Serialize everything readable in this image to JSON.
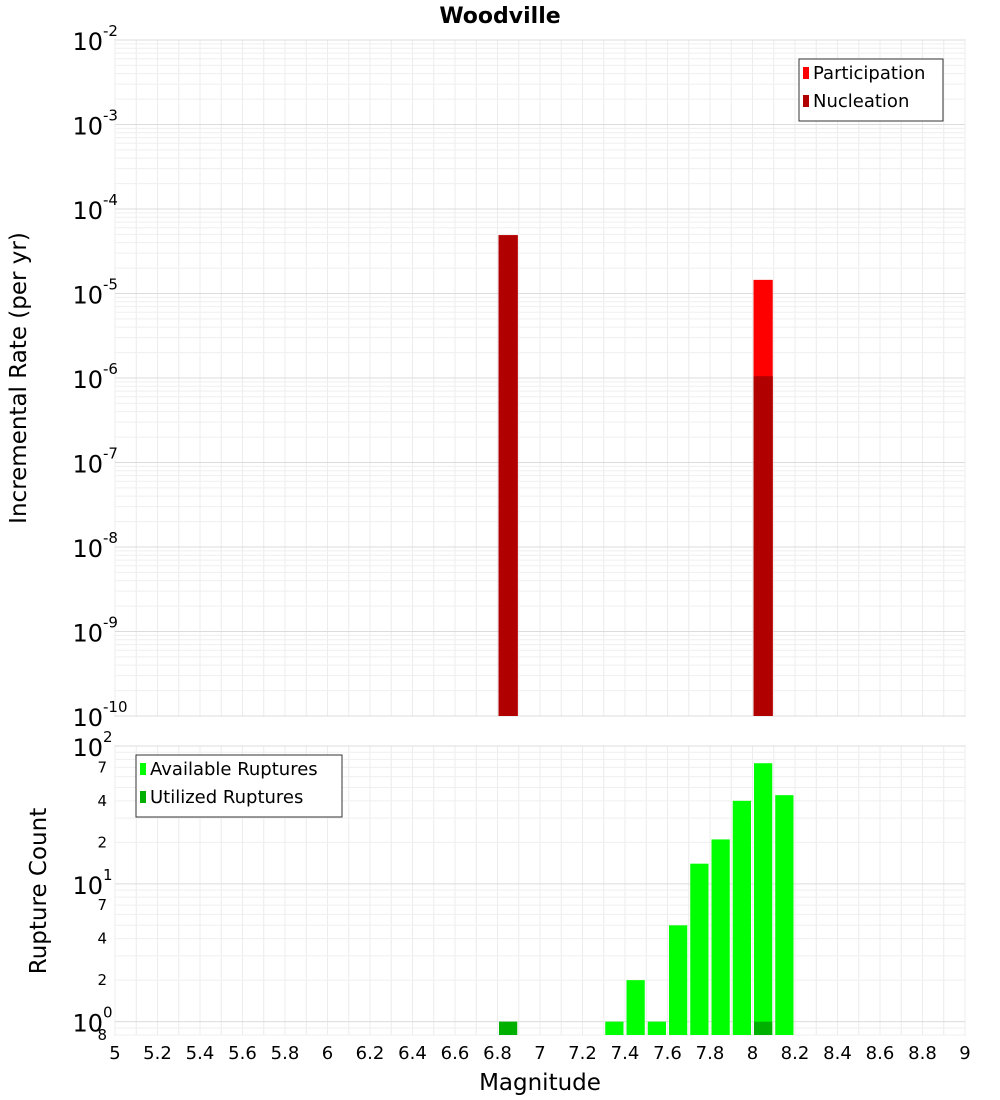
{
  "title": "Woodville",
  "chart_data": [
    {
      "type": "bar",
      "ylabel": "Incremental Rate (per yr)",
      "yscale": "log",
      "ylim": [
        1e-10,
        0.01
      ],
      "xlim": [
        5,
        9
      ],
      "bin_width": 0.1,
      "y_tick_base": "10",
      "y_ticks": [
        {
          "value": 0.01,
          "exp": "-2"
        },
        {
          "value": 0.001,
          "exp": "-3"
        },
        {
          "value": 0.0001,
          "exp": "-4"
        },
        {
          "value": 1e-05,
          "exp": "-5"
        },
        {
          "value": 1e-06,
          "exp": "-6"
        },
        {
          "value": 1e-07,
          "exp": "-7"
        },
        {
          "value": 1e-08,
          "exp": "-8"
        },
        {
          "value": 1e-09,
          "exp": "-9"
        },
        {
          "value": 1e-10,
          "exp": "-10"
        }
      ],
      "legend": {
        "position": "top-right"
      },
      "grid": true,
      "series": [
        {
          "name": "Participation",
          "color": "#ff0000",
          "x": [
            6.85,
            8.05
          ],
          "values": [
            4.9e-05,
            1.45e-05
          ]
        },
        {
          "name": "Nucleation",
          "color": "#b00000",
          "x": [
            6.85,
            8.05
          ],
          "values": [
            4.9e-05,
            1.05e-06
          ]
        }
      ]
    },
    {
      "type": "bar",
      "xlabel": "Magnitude",
      "ylabel": "Rupture Count",
      "yscale": "log",
      "ylim": [
        0.8,
        100
      ],
      "xlim": [
        5,
        9
      ],
      "bin_width": 0.1,
      "x_ticks": [
        "5",
        "5.2",
        "5.4",
        "5.6",
        "5.8",
        "6",
        "6.2",
        "6.4",
        "6.6",
        "6.8",
        "7",
        "7.2",
        "7.4",
        "7.6",
        "7.8",
        "8",
        "8.2",
        "8.4",
        "8.6",
        "8.8",
        "9"
      ],
      "y_tick_base": "10",
      "y_ticks": [
        {
          "value": 100,
          "exp": "2"
        },
        {
          "value": 10,
          "exp": "1"
        },
        {
          "value": 1,
          "exp": "0"
        }
      ],
      "y_minor_ticks": [
        {
          "value": 70,
          "label": "7"
        },
        {
          "value": 40,
          "label": "4"
        },
        {
          "value": 20,
          "label": "2"
        },
        {
          "value": 7,
          "label": "7"
        },
        {
          "value": 4,
          "label": "4"
        },
        {
          "value": 2,
          "label": "2"
        },
        {
          "value": 0.8,
          "label": "8"
        }
      ],
      "legend": {
        "position": "top-left"
      },
      "grid": true,
      "series": [
        {
          "name": "Available Ruptures",
          "color": "#00ff00",
          "x": [
            7.35,
            7.45,
            7.55,
            7.65,
            7.75,
            7.85,
            7.95,
            8.05,
            8.15
          ],
          "values": [
            1,
            2,
            1,
            5,
            14,
            21,
            40,
            75,
            44
          ]
        },
        {
          "name": "Utilized Ruptures",
          "color": "#00b000",
          "x": [
            6.85,
            8.05
          ],
          "values": [
            1,
            1
          ]
        }
      ]
    }
  ]
}
